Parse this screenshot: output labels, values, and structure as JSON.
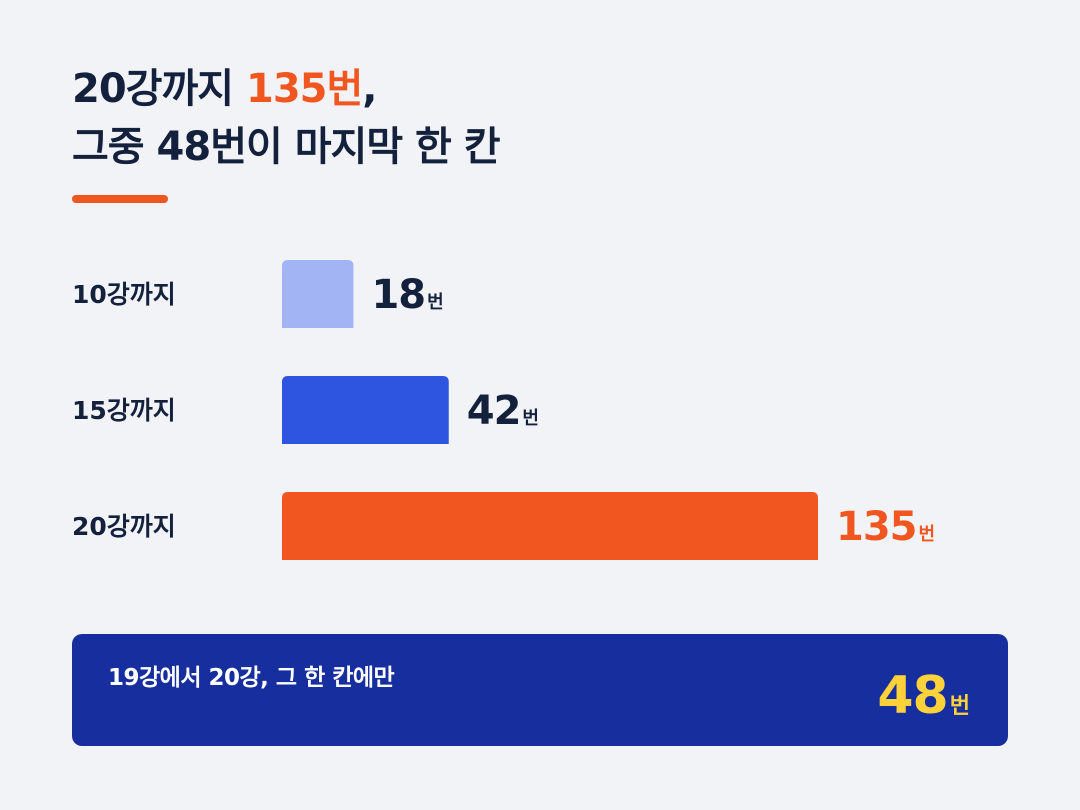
{
  "title": {
    "line1_prefix": "20강까지 ",
    "line1_accent": "135번",
    "line1_suffix": ",",
    "line2": "그중 48번이 마지막 한 칸"
  },
  "chart_data": {
    "type": "bar",
    "orientation": "horizontal",
    "categories": [
      "10강까지",
      "15강까지",
      "20강까지"
    ],
    "values": [
      18,
      42,
      135
    ],
    "unit": "번",
    "colors": [
      "#a2b4f4",
      "#2d55e0",
      "#f25620"
    ],
    "label_colors": [
      "#14213d",
      "#14213d",
      "#f25620"
    ]
  },
  "callout": {
    "text": "19강에서 20강, 그 한 칸에만",
    "value": "48",
    "unit": "번"
  },
  "colors": {
    "background": "#f2f3f7",
    "text": "#14213d",
    "accent": "#f25620",
    "callout_bg": "#172e9e",
    "callout_value": "#ffd23a"
  }
}
